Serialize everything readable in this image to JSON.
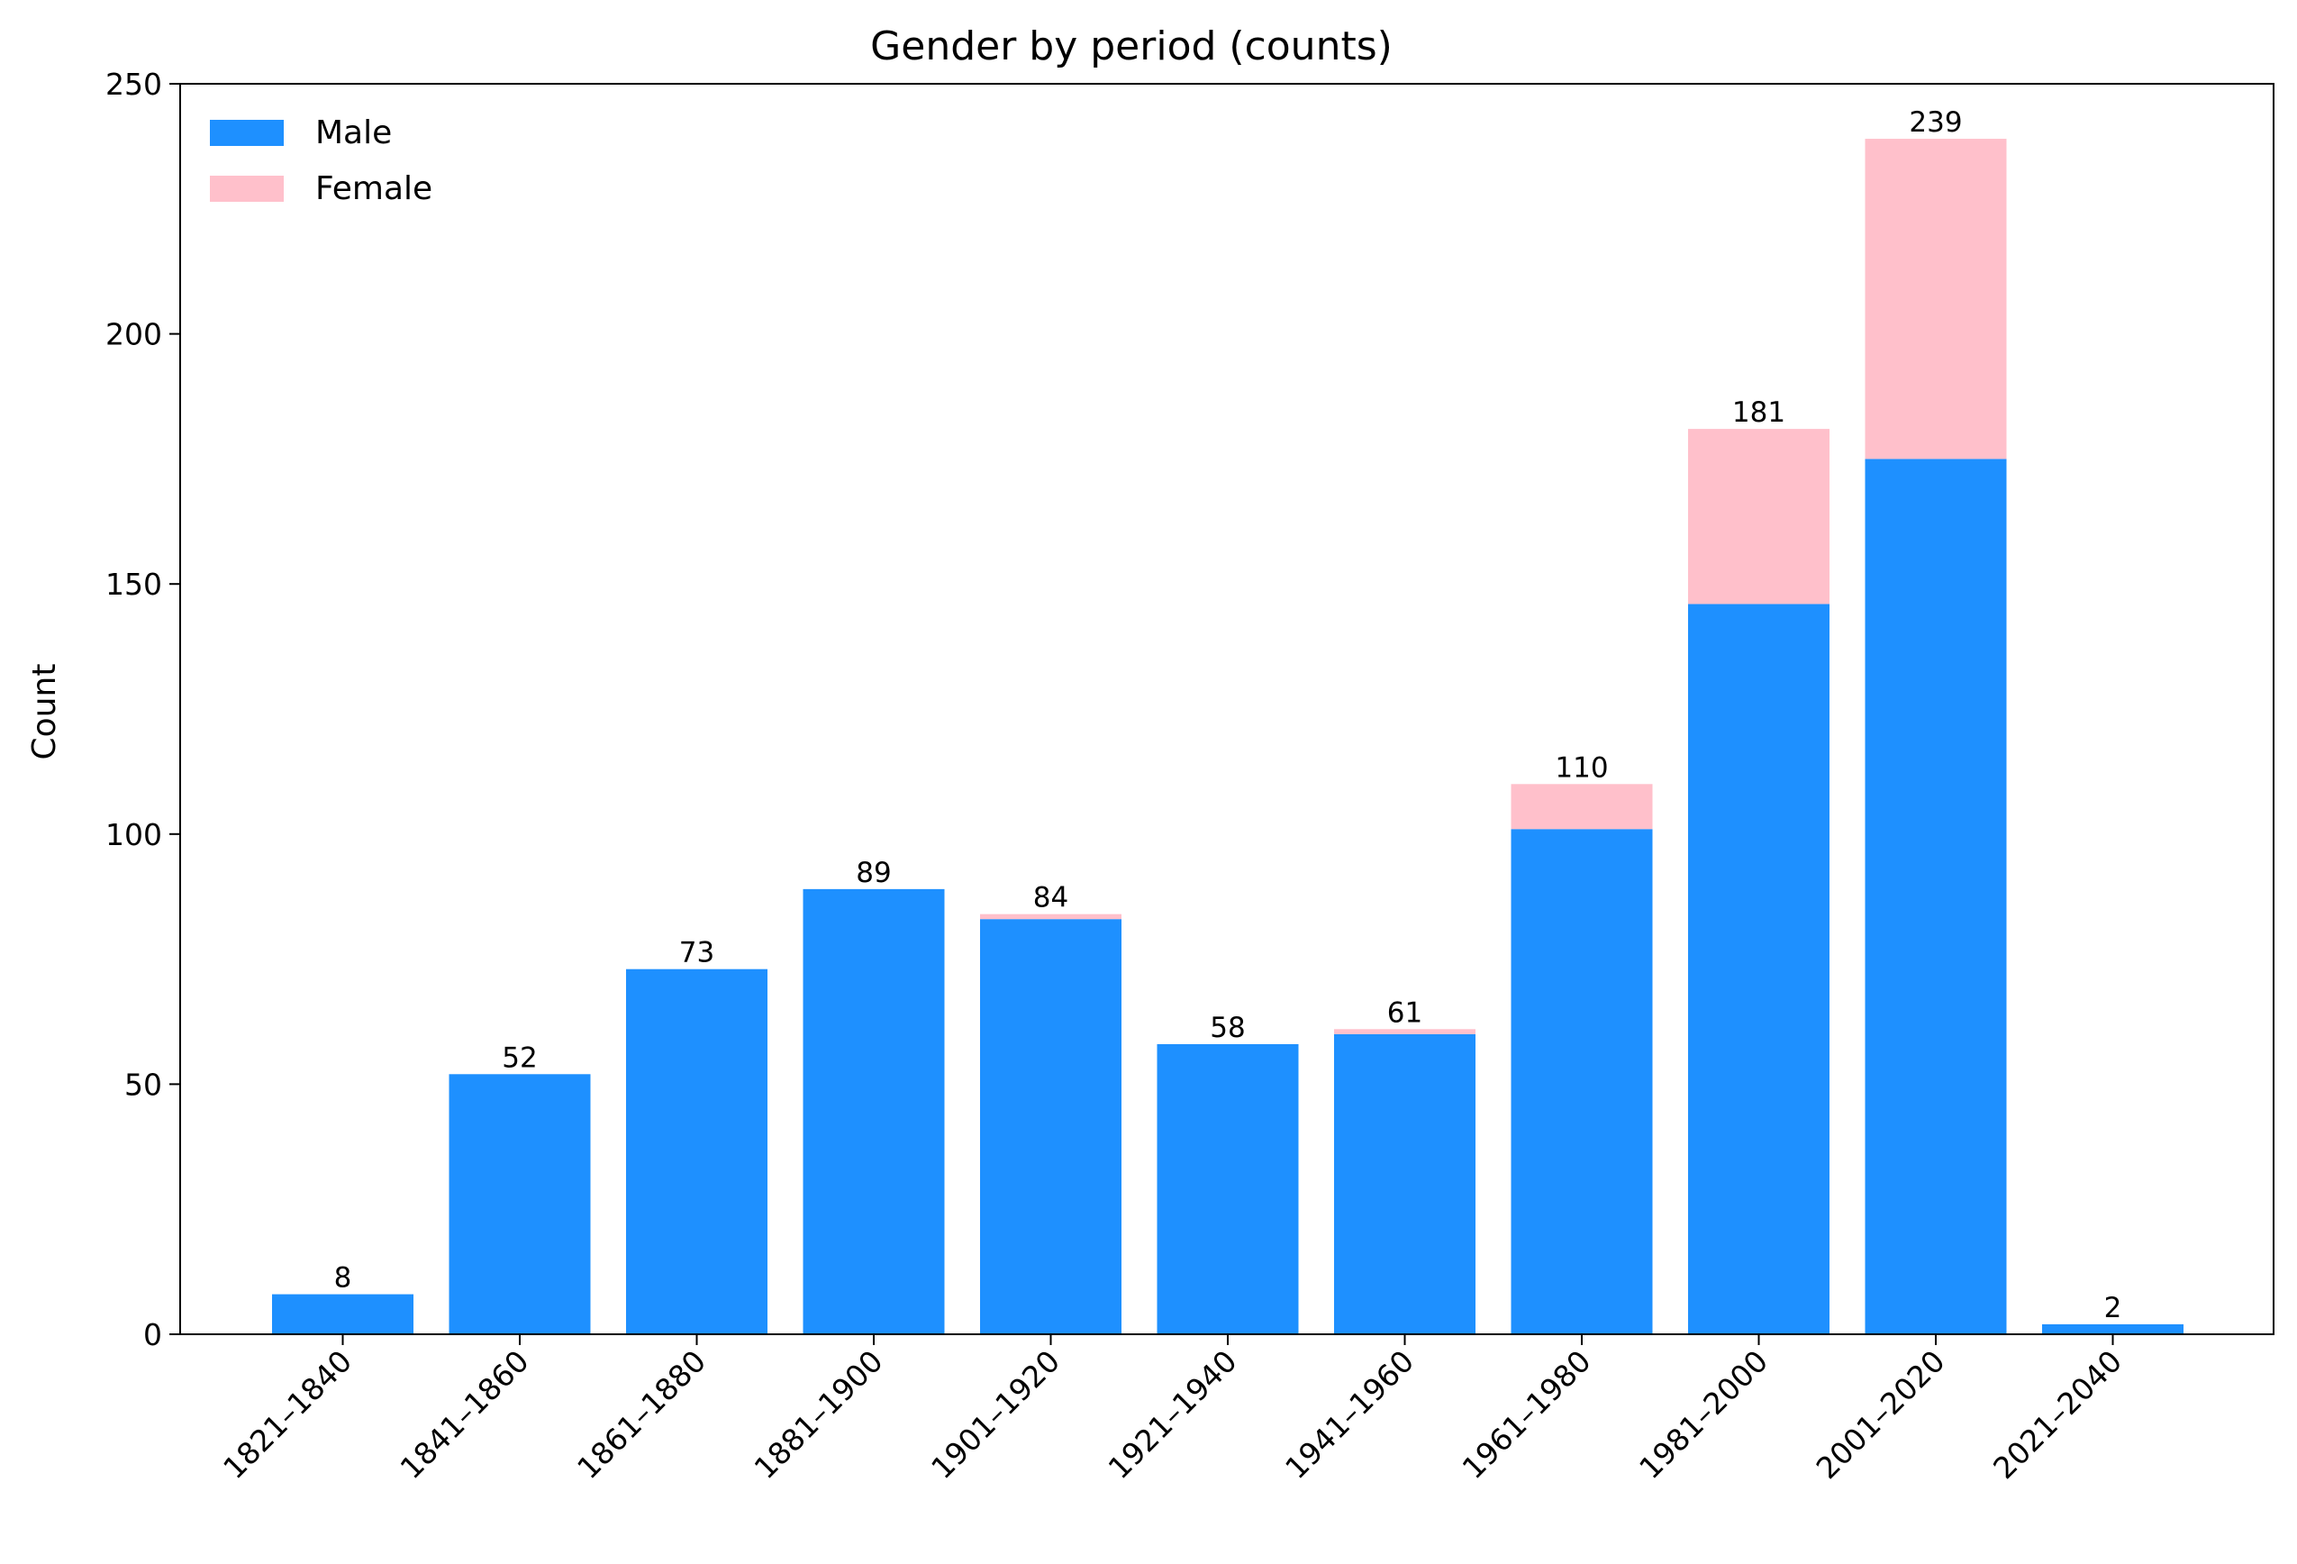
{
  "colors": {
    "male": "#1e90ff",
    "female": "#ffc0cb",
    "axis": "#000000"
  },
  "chart_data": {
    "type": "bar",
    "stacked": true,
    "title": "Gender by period (counts)",
    "xlabel": "",
    "ylabel": "Count",
    "ylim": [
      0,
      250
    ],
    "yticks": [
      0,
      50,
      100,
      150,
      200,
      250
    ],
    "categories": [
      "1821–1840",
      "1841–1860",
      "1861–1880",
      "1881–1900",
      "1901–1920",
      "1921–1940",
      "1941–1960",
      "1961–1980",
      "1981–2000",
      "2001–2020",
      "2021–2040"
    ],
    "series": [
      {
        "name": "Male",
        "color": "#1e90ff",
        "values": [
          8,
          52,
          73,
          89,
          83,
          58,
          60,
          101,
          146,
          175,
          2
        ]
      },
      {
        "name": "Female",
        "color": "#ffc0cb",
        "values": [
          0,
          0,
          0,
          0,
          1,
          0,
          1,
          9,
          35,
          64,
          0
        ]
      }
    ],
    "totals": [
      8,
      52,
      73,
      89,
      84,
      58,
      61,
      110,
      181,
      239,
      2
    ],
    "legend": {
      "position": "top-left",
      "frame": false
    },
    "grid": false
  }
}
